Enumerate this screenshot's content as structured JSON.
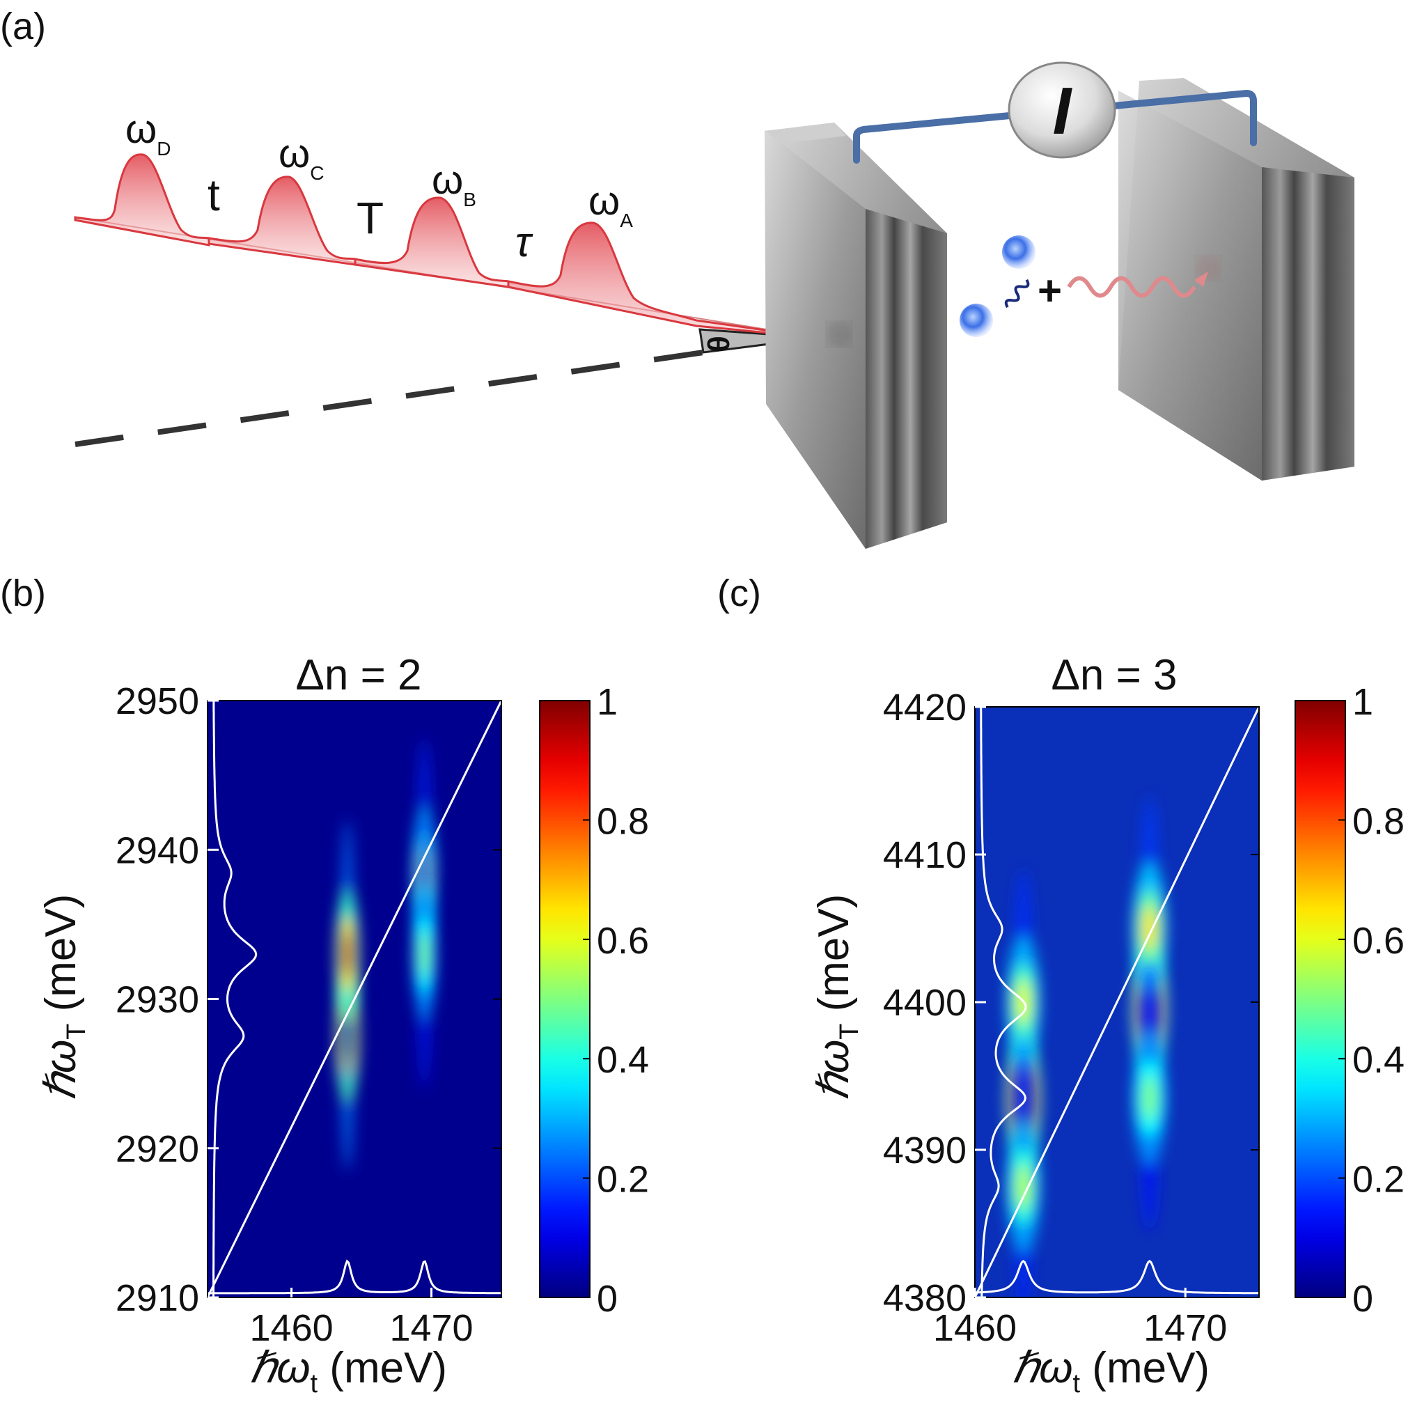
{
  "panel_a": {
    "label": "(a)",
    "pulses": [
      {
        "omega": "ω",
        "sub": "D"
      },
      {
        "omega": "ω",
        "sub": "C"
      },
      {
        "omega": "ω",
        "sub": "B"
      },
      {
        "omega": "ω",
        "sub": "A"
      }
    ],
    "delays": [
      "t",
      "T",
      "τ"
    ],
    "angle": "θ",
    "meter": "I",
    "plus": "+"
  },
  "chart_data": [
    {
      "panel_label": "(b)",
      "type": "heatmap",
      "title": "Δn = 2",
      "xlabel": "ℏω",
      "xlabel_sub": "t",
      "xunit": " (meV)",
      "ylabel": "ℏω",
      "ylabel_sub": "T",
      "yunit": " (meV)",
      "xlim": [
        1454,
        1475
      ],
      "ylim": [
        2910,
        2950
      ],
      "xticks": [
        1460,
        1470
      ],
      "yticks": [
        2910,
        2920,
        2930,
        2940,
        2950
      ],
      "diagonal": [
        [
          1454,
          2910
        ],
        [
          1475,
          2950
        ]
      ],
      "peaks": [
        {
          "x": 1464,
          "y": 2927.5,
          "amp": 1.0
        },
        {
          "x": 1464,
          "y": 2933,
          "amp": 0.95
        },
        {
          "x": 1469.5,
          "y": 2938.5,
          "amp": 0.55
        },
        {
          "x": 1469.5,
          "y": 2933,
          "amp": 0.5
        }
      ],
      "colorbar": {
        "ticks": [
          "0",
          "0.2",
          "0.4",
          "0.6",
          "0.8",
          "1"
        ]
      }
    },
    {
      "panel_label": "(c)",
      "type": "heatmap",
      "title": "Δn = 3",
      "xlabel": "ℏω",
      "xlabel_sub": "t",
      "xunit": " (meV)",
      "ylabel": "ℏω",
      "ylabel_sub": "T",
      "yunit": " (meV)",
      "xlim": [
        1460,
        1473.5
      ],
      "ylim": [
        4380,
        4420
      ],
      "xticks": [
        1460,
        1470
      ],
      "yticks": [
        4380,
        4390,
        4400,
        4410,
        4420
      ],
      "diagonal": [
        [
          1460,
          4380
        ],
        [
          1473.5,
          4420
        ]
      ],
      "peaks": [
        {
          "x": 1462.3,
          "y": 4393.5,
          "amp": 1.0
        },
        {
          "x": 1462.3,
          "y": 4400,
          "amp": 0.6
        },
        {
          "x": 1462.3,
          "y": 4387.5,
          "amp": 0.55
        },
        {
          "x": 1468.3,
          "y": 4399.5,
          "amp": 0.95
        },
        {
          "x": 1468.3,
          "y": 4405,
          "amp": 0.65
        },
        {
          "x": 1468.3,
          "y": 4393.5,
          "amp": 0.5
        }
      ],
      "colorbar": {
        "ticks": [
          "0",
          "0.2",
          "0.4",
          "0.6",
          "0.8",
          "1"
        ]
      }
    }
  ]
}
